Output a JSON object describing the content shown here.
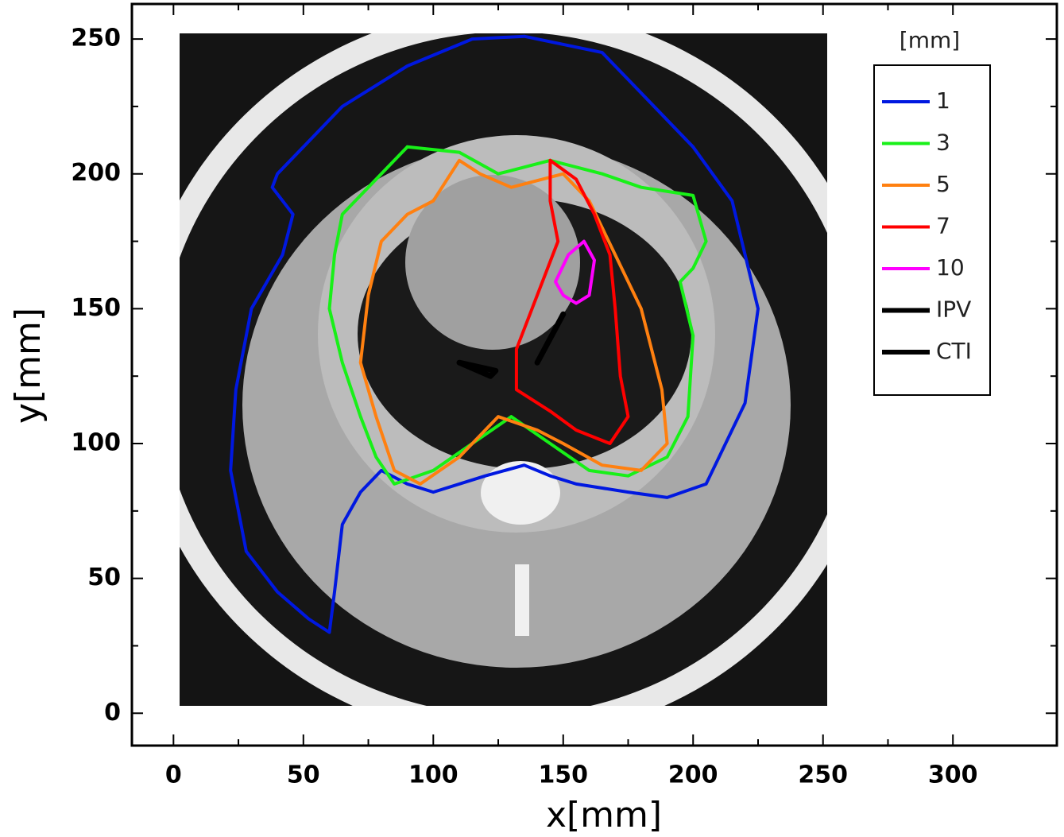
{
  "chart_data": {
    "type": "contour",
    "xlabel": "x[mm]",
    "ylabel": "y[mm]",
    "xlim": [
      -16,
      340
    ],
    "ylim": [
      -12,
      263
    ],
    "xticks": [
      0,
      50,
      100,
      150,
      200,
      250,
      300
    ],
    "yticks": [
      0,
      50,
      100,
      150,
      200,
      250
    ],
    "legend_title": "[mm]",
    "legend": "upper right",
    "series": [
      {
        "name": "1",
        "color": "#0018e0",
        "x": [
          135,
          165,
          175,
          200,
          215,
          225,
          220,
          205,
          190,
          175,
          155,
          145,
          135,
          120,
          100,
          90,
          80,
          72,
          65,
          62,
          60,
          52,
          40,
          28,
          22,
          24,
          30,
          42,
          46,
          38,
          40,
          50,
          65,
          90,
          115,
          135
        ],
        "y": [
          251,
          245,
          235,
          210,
          190,
          150,
          115,
          85,
          80,
          82,
          85,
          88,
          92,
          88,
          82,
          85,
          90,
          82,
          70,
          45,
          30,
          35,
          45,
          60,
          90,
          120,
          150,
          170,
          185,
          195,
          200,
          210,
          225,
          240,
          250,
          251
        ]
      },
      {
        "name": "3",
        "color": "#18f018",
        "x": [
          90,
          110,
          125,
          145,
          165,
          180,
          200,
          205,
          200,
          195,
          200,
          198,
          190,
          175,
          160,
          145,
          130,
          115,
          100,
          85,
          78,
          72,
          65,
          60,
          62,
          65,
          75,
          90
        ],
        "y": [
          210,
          208,
          200,
          205,
          200,
          195,
          192,
          175,
          165,
          160,
          140,
          110,
          95,
          88,
          90,
          100,
          110,
          100,
          90,
          85,
          95,
          110,
          130,
          150,
          170,
          185,
          195,
          210
        ]
      },
      {
        "name": "5",
        "color": "#ff8010",
        "x": [
          110,
          118,
          130,
          150,
          160,
          170,
          180,
          188,
          190,
          180,
          165,
          150,
          140,
          125,
          110,
          95,
          85,
          78,
          72,
          75,
          80,
          90,
          100,
          110
        ],
        "y": [
          205,
          200,
          195,
          200,
          190,
          170,
          150,
          120,
          100,
          90,
          92,
          100,
          105,
          110,
          95,
          85,
          90,
          110,
          130,
          155,
          175,
          185,
          190,
          205
        ]
      },
      {
        "name": "7",
        "color": "#ff0000",
        "x": [
          145,
          155,
          162,
          168,
          170,
          172,
          175,
          168,
          155,
          145,
          132,
          132,
          140,
          148,
          145,
          145
        ],
        "y": [
          205,
          198,
          185,
          170,
          150,
          125,
          110,
          100,
          105,
          112,
          120,
          135,
          155,
          175,
          190,
          205
        ]
      },
      {
        "name": "10",
        "color": "#ff00ff",
        "x": [
          158,
          162,
          160,
          155,
          150,
          147,
          152,
          158
        ],
        "y": [
          175,
          168,
          155,
          152,
          155,
          160,
          170,
          175
        ]
      },
      {
        "name": "IPV",
        "color": "#000000",
        "x": [
          140,
          150
        ],
        "y": [
          130,
          148
        ]
      },
      {
        "name": "CTI",
        "color": "#000000",
        "x": [
          110,
          124,
          122,
          110
        ],
        "y": [
          130,
          127,
          125,
          130
        ]
      }
    ]
  }
}
